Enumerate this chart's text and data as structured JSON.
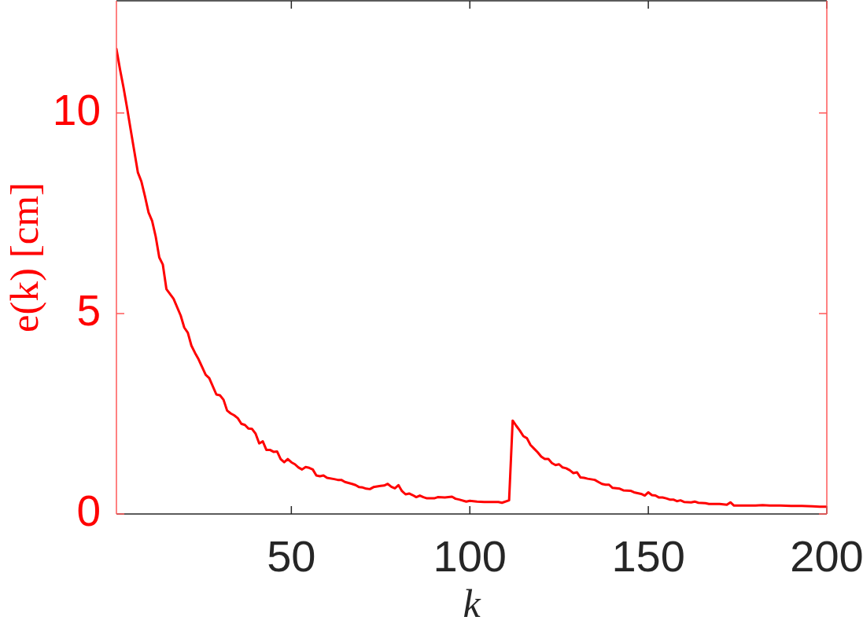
{
  "chart_data": {
    "type": "line",
    "xlabel": "k",
    "ylabel": "e(k) [cm]",
    "x": [
      1,
      2,
      3,
      4,
      5,
      6,
      7,
      8,
      9,
      10,
      11,
      12,
      13,
      14,
      15,
      17,
      19,
      20,
      21,
      22,
      23,
      24,
      26,
      27,
      29,
      30,
      31,
      32,
      33,
      34,
      35,
      36,
      37,
      38,
      39,
      40,
      41,
      42,
      43,
      44,
      45,
      46,
      47,
      48,
      49,
      50,
      51,
      52,
      53,
      54,
      55,
      56,
      57,
      58,
      59,
      60,
      62,
      63,
      64,
      65,
      67,
      68,
      69,
      70,
      71,
      72,
      73,
      75,
      76,
      77,
      78,
      79,
      80,
      81,
      82,
      83,
      84,
      85,
      86,
      87,
      88,
      90,
      91,
      93,
      95,
      96,
      97,
      99,
      100,
      102,
      104,
      106,
      108,
      109,
      111,
      112,
      113,
      114,
      115,
      116,
      117,
      118,
      119,
      120,
      121,
      122,
      123,
      124,
      125,
      126,
      127,
      128,
      129,
      130,
      131,
      132,
      133,
      135,
      136,
      137,
      138,
      139,
      140,
      141,
      142,
      143,
      145,
      146,
      147,
      148,
      149,
      150,
      151,
      152,
      153,
      154,
      155,
      156,
      157,
      158,
      159,
      160,
      162,
      163,
      164,
      166,
      167,
      170,
      172,
      173,
      174,
      177,
      180,
      182,
      184,
      187,
      190,
      193,
      196,
      198,
      200
    ],
    "series": [
      {
        "color": "#ff0000",
        "values": [
          11.6,
          11.09,
          10.63,
          10.12,
          9.58,
          9.05,
          8.52,
          8.29,
          7.92,
          7.52,
          7.31,
          6.92,
          6.4,
          6.22,
          5.61,
          5.37,
          4.95,
          4.65,
          4.52,
          4.2,
          4.02,
          3.86,
          3.47,
          3.39,
          2.98,
          2.96,
          2.85,
          2.58,
          2.51,
          2.46,
          2.39,
          2.25,
          2.22,
          2.13,
          2.12,
          2.0,
          1.76,
          1.81,
          1.6,
          1.6,
          1.55,
          1.56,
          1.37,
          1.29,
          1.37,
          1.29,
          1.24,
          1.16,
          1.11,
          1.17,
          1.15,
          1.11,
          0.96,
          0.94,
          0.96,
          0.9,
          0.87,
          0.85,
          0.85,
          0.8,
          0.75,
          0.72,
          0.67,
          0.66,
          0.63,
          0.62,
          0.67,
          0.7,
          0.71,
          0.75,
          0.68,
          0.64,
          0.72,
          0.57,
          0.49,
          0.51,
          0.47,
          0.42,
          0.46,
          0.42,
          0.39,
          0.39,
          0.42,
          0.41,
          0.43,
          0.38,
          0.36,
          0.31,
          0.33,
          0.31,
          0.3,
          0.3,
          0.3,
          0.28,
          0.34,
          2.33,
          2.2,
          2.08,
          1.94,
          1.89,
          1.72,
          1.63,
          1.54,
          1.43,
          1.37,
          1.37,
          1.27,
          1.22,
          1.24,
          1.16,
          1.14,
          1.09,
          1.02,
          1.04,
          0.91,
          0.9,
          0.88,
          0.85,
          0.8,
          0.75,
          0.73,
          0.73,
          0.65,
          0.64,
          0.63,
          0.59,
          0.58,
          0.54,
          0.52,
          0.5,
          0.46,
          0.54,
          0.47,
          0.46,
          0.41,
          0.41,
          0.39,
          0.36,
          0.36,
          0.32,
          0.34,
          0.3,
          0.29,
          0.31,
          0.28,
          0.27,
          0.25,
          0.25,
          0.23,
          0.29,
          0.21,
          0.21,
          0.21,
          0.22,
          0.21,
          0.21,
          0.2,
          0.2,
          0.19,
          0.18,
          0.18
        ]
      }
    ],
    "xlim": [
      1,
      200
    ],
    "xticks": [
      50,
      100,
      150,
      200
    ],
    "ylim": [
      0,
      12.8
    ],
    "yticks": [
      0,
      5,
      10
    ]
  }
}
